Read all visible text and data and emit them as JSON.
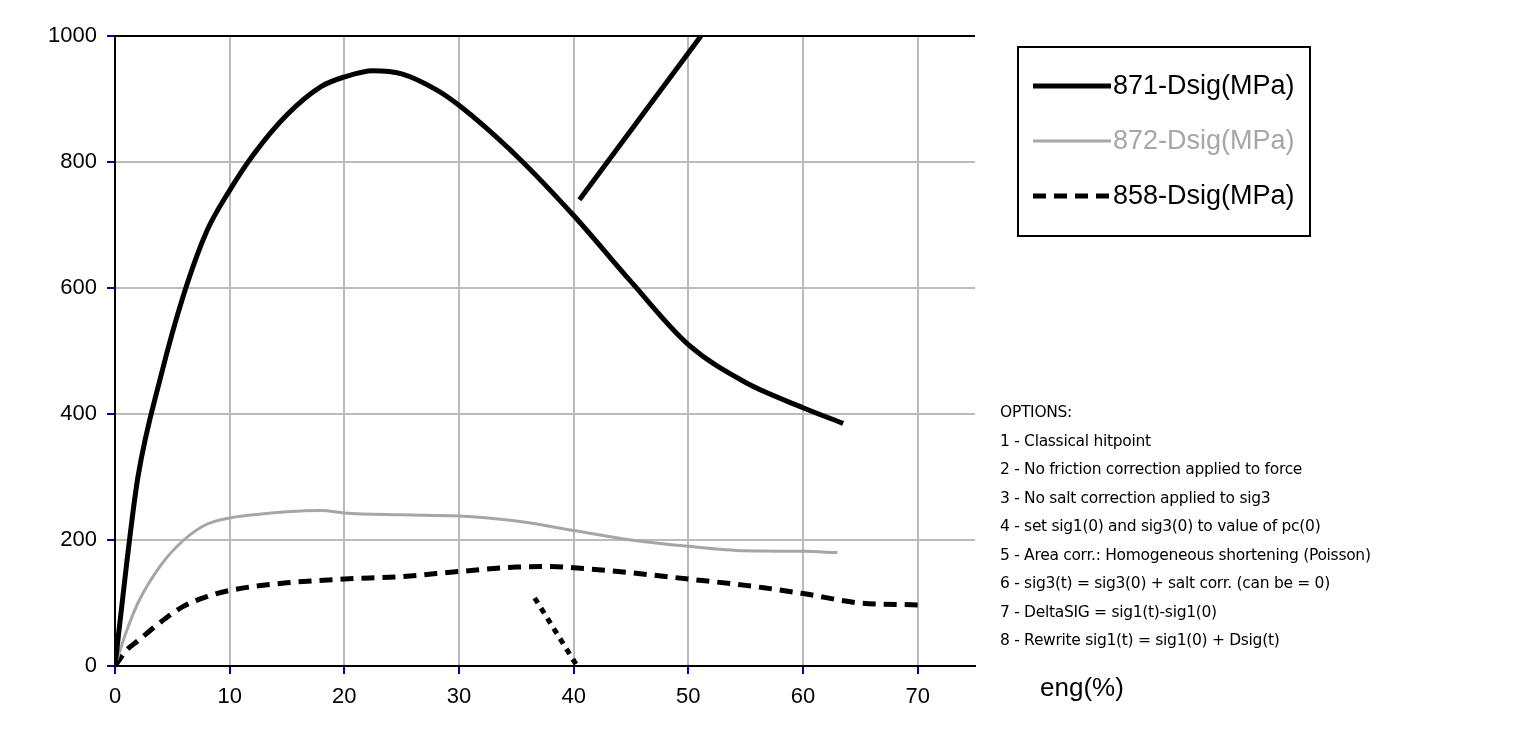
{
  "chart_data": {
    "type": "line",
    "xlabel": "eng(%)",
    "xlim": [
      0,
      75
    ],
    "xticks": [
      0,
      10,
      20,
      30,
      40,
      50,
      60,
      70
    ],
    "ylim": [
      0,
      1000
    ],
    "yticks": [
      0,
      200,
      400,
      600,
      800,
      1000
    ],
    "grid": true,
    "legend": "right",
    "series": [
      {
        "name": "871-Dsig(MPa)",
        "color": "#000000",
        "line_style": "solid",
        "x": [
          0,
          1,
          2,
          4,
          6,
          8,
          10,
          12,
          15,
          18,
          20,
          22.5,
          25,
          28,
          30,
          35,
          40,
          45,
          50,
          55,
          60,
          63.5
        ],
        "values": [
          0,
          160,
          300,
          460,
          590,
          690,
          755,
          810,
          875,
          920,
          935,
          945,
          940,
          915,
          890,
          810,
          715,
          610,
          510,
          450,
          410,
          385
        ]
      },
      {
        "name": "872-Dsig(MPa)",
        "color": "#a6a6a6",
        "line_style": "solid",
        "x": [
          0,
          1,
          2,
          4,
          6,
          8,
          10,
          12,
          15,
          18,
          20,
          25,
          30,
          35,
          40,
          45,
          50,
          55,
          60,
          63
        ],
        "values": [
          0,
          55,
          100,
          160,
          200,
          225,
          235,
          240,
          245,
          247,
          243,
          240,
          238,
          230,
          215,
          200,
          190,
          183,
          182,
          180
        ]
      },
      {
        "name": "858-Dsig(MPa)",
        "color": "#000000",
        "line_style": "dashed",
        "x": [
          0,
          1,
          2,
          4,
          6,
          8,
          10,
          15,
          20,
          25,
          30,
          35,
          38,
          40,
          45,
          50,
          55,
          60,
          65,
          70
        ],
        "values": [
          0,
          25,
          40,
          70,
          95,
          110,
          120,
          132,
          138,
          142,
          150,
          157,
          158,
          156,
          148,
          138,
          128,
          115,
          100,
          97
        ]
      },
      {
        "type": "line",
        "color": "#000000",
        "line_style": "solid",
        "x": [
          40.5,
          51.1
        ],
        "values": [
          740,
          1000
        ]
      },
      {
        "type": "line",
        "color": "#000000",
        "line_style": "dotted",
        "x": [
          36.6,
          40.3
        ],
        "values": [
          108,
          0
        ]
      }
    ],
    "annotations": [
      "OPTIONS:",
      "1 - Classical hitpoint",
      "2 - No friction correction applied to force",
      "3 - No salt correction applied to sig3",
      "4 - set sig1(0) and sig3(0) to value of pc(0)",
      "5 - Area corr.: Homogeneous shortening (Poisson)",
      "6 - sig3(t) = sig3(0) + salt corr. (can be = 0)",
      "7 - DeltaSIG = sig1(t)-sig1(0)",
      "8 - Rewrite sig1(t) = sig1(0) + Dsig(t)"
    ]
  }
}
